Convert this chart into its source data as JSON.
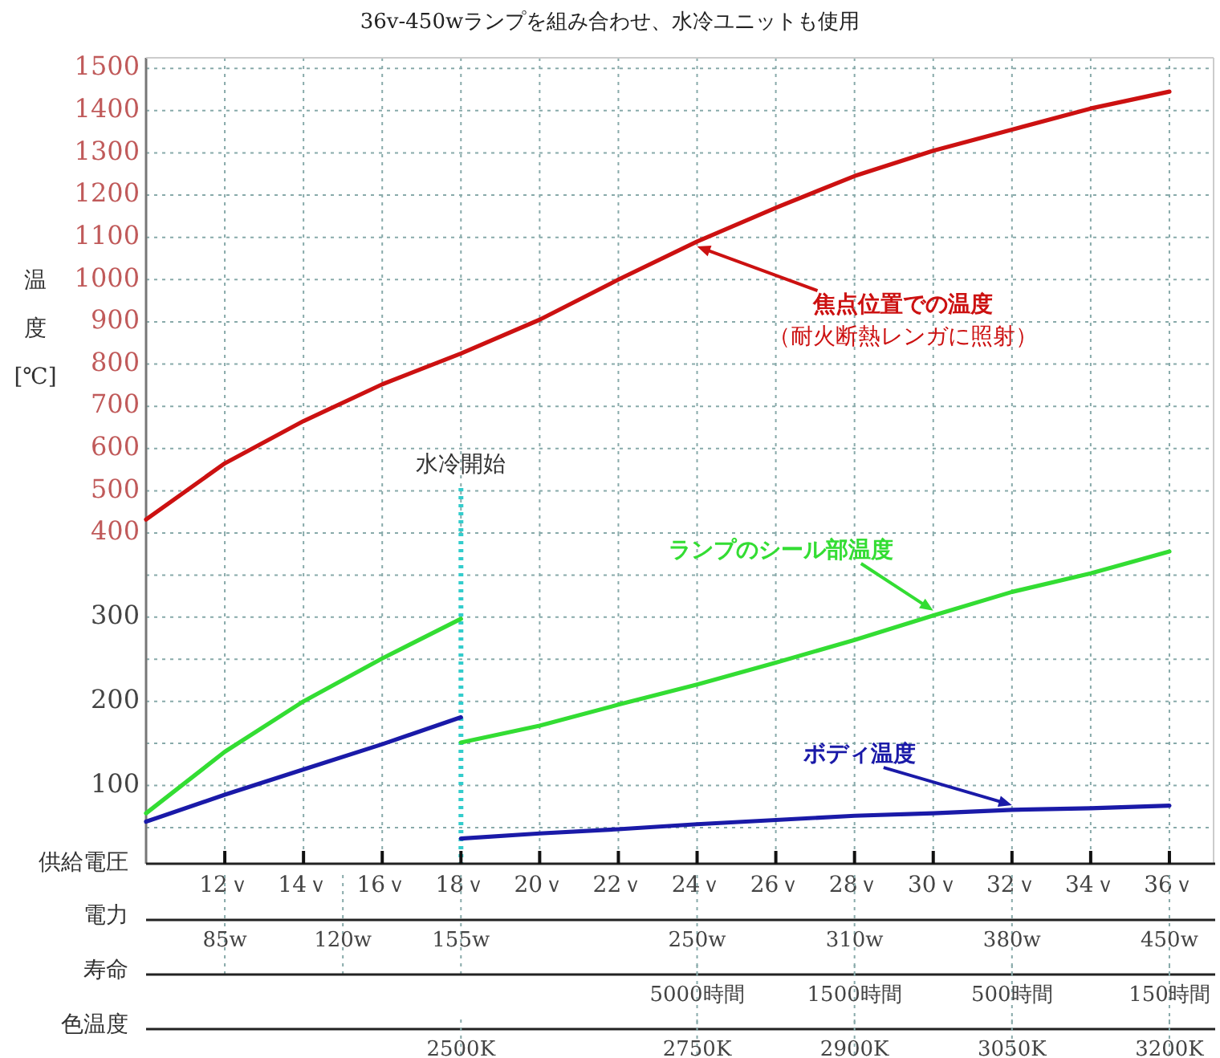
{
  "chart_data": [
    {
      "type": "line",
      "title": "36v-450wランプを組み合わせ、水冷ユニットも使用",
      "ylabel": "温度[℃]",
      "xlim": [
        10,
        37
      ],
      "xticks": [
        12,
        14,
        16,
        18,
        20,
        22,
        24,
        26,
        28,
        30,
        32,
        34,
        36
      ],
      "tick_labels": "y",
      "ylim": [
        400,
        1525
      ],
      "yticks": [
        400,
        500,
        600,
        700,
        800,
        900,
        1000,
        1100,
        1200,
        1300,
        1400,
        1500
      ],
      "grid": true,
      "series": [
        {
          "name": "焦点位置での温度",
          "color": "#cc1111",
          "x": [
            10,
            12,
            14,
            16,
            18,
            20,
            22,
            24,
            26,
            28,
            30,
            32,
            34,
            36
          ],
          "values": [
            432,
            565,
            665,
            752,
            825,
            905,
            1000,
            1090,
            1170,
            1245,
            1305,
            1355,
            1405,
            1445
          ]
        }
      ],
      "annotations": [
        "（耐火断熱レンガに照射）"
      ],
      "ref_lines": [
        {
          "axis": "x",
          "value": 18,
          "label": "水冷開始",
          "color": "#33cccc",
          "line_style": "dotted"
        }
      ]
    },
    {
      "type": "line",
      "xlabel": "供給電圧",
      "xlim": [
        10,
        37
      ],
      "xticks": [
        {
          "value": 12,
          "label": "12ｖ"
        },
        {
          "value": 14,
          "label": "14ｖ"
        },
        {
          "value": 16,
          "label": "16ｖ"
        },
        {
          "value": 18,
          "label": "18ｖ"
        },
        {
          "value": 20,
          "label": "20ｖ"
        },
        {
          "value": 22,
          "label": "22ｖ"
        },
        {
          "value": 24,
          "label": "24ｖ"
        },
        {
          "value": 26,
          "label": "26ｖ"
        },
        {
          "value": 28,
          "label": "28ｖ"
        },
        {
          "value": 30,
          "label": "30ｖ"
        },
        {
          "value": 32,
          "label": "32ｖ"
        },
        {
          "value": 34,
          "label": "34ｖ"
        },
        {
          "value": 36,
          "label": "36ｖ"
        }
      ],
      "annotations": [
        "電力",
        "85w",
        "120w",
        "155w",
        "250w",
        "310w",
        "380w",
        "450w",
        "寿命",
        "5000時間",
        "1500時間",
        "500時間",
        "150時間",
        "色温度",
        "2500K",
        "2750K",
        "2900K",
        "3050K",
        "3200K"
      ],
      "ylim": [
        7,
        400
      ],
      "yticks": [
        {
          "value": 50,
          "label": null
        },
        100,
        {
          "value": 150,
          "label": null
        },
        200,
        {
          "value": 250,
          "label": null
        },
        300,
        {
          "value": 350,
          "label": null
        }
      ],
      "grid": true,
      "series": [
        {
          "name": "ランプのシール部温度",
          "color": "#33dd33",
          "x": [
            10,
            12,
            14,
            16,
            18,
            18,
            20,
            22,
            24,
            26,
            28,
            30,
            32,
            34,
            36
          ],
          "values": [
            67,
            140,
            200,
            251,
            298,
            151,
            171,
            196,
            220,
            246,
            273,
            302,
            330,
            352,
            378
          ]
        },
        {
          "name": "ボディ温度",
          "color": "#1a1aa8",
          "x": [
            10,
            12,
            14,
            16,
            18,
            18,
            20,
            22,
            24,
            26,
            28,
            30,
            32,
            34,
            36
          ],
          "values": [
            57,
            89,
            119,
            149,
            181,
            37,
            43,
            48,
            54,
            59,
            64,
            67,
            71,
            73,
            76
          ]
        }
      ],
      "ref_lines": [
        {
          "axis": "x",
          "value": 18,
          "color": "#33cccc",
          "line_style": "dotted"
        }
      ]
    }
  ]
}
